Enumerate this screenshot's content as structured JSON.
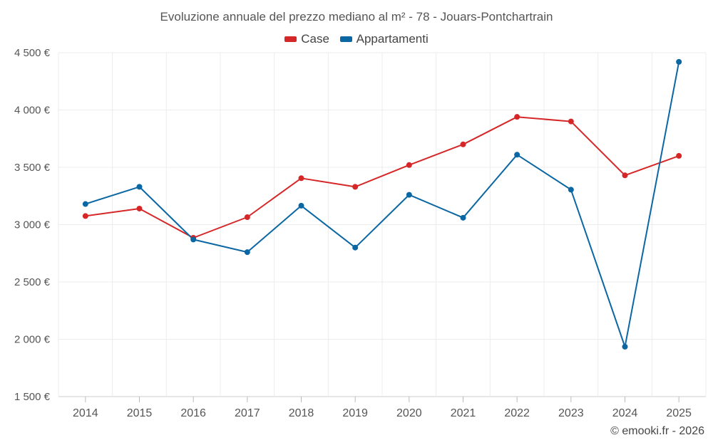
{
  "chart_data": {
    "type": "line",
    "title": "Evoluzione annuale del prezzo mediano al m² - 78 - Jouars-Pontchartrain",
    "categories": [
      "2014",
      "2015",
      "2016",
      "2017",
      "2018",
      "2019",
      "2020",
      "2021",
      "2022",
      "2023",
      "2024",
      "2025"
    ],
    "series": [
      {
        "name": "Case",
        "color": "#d62728",
        "values": [
          3075,
          3140,
          2885,
          3065,
          3405,
          3330,
          3520,
          3700,
          3940,
          3900,
          3430,
          3600
        ]
      },
      {
        "name": "Appartamenti",
        "color": "#0a67a3",
        "values": [
          3180,
          3330,
          2870,
          2760,
          3165,
          2800,
          3260,
          3060,
          3610,
          3305,
          1935,
          4420
        ]
      }
    ],
    "ylim": [
      1500,
      4500
    ],
    "yticks": [
      1500,
      2000,
      2500,
      3000,
      3500,
      4000,
      4500
    ],
    "ytick_labels": [
      "1 500 €",
      "2 000 €",
      "2 500 €",
      "3 000 €",
      "3 500 €",
      "4 000 €",
      "4 500 €"
    ],
    "xlabel": "",
    "ylabel": "",
    "grid": true,
    "legend_position": "top-center"
  },
  "credit": "© emooki.fr - 2026"
}
